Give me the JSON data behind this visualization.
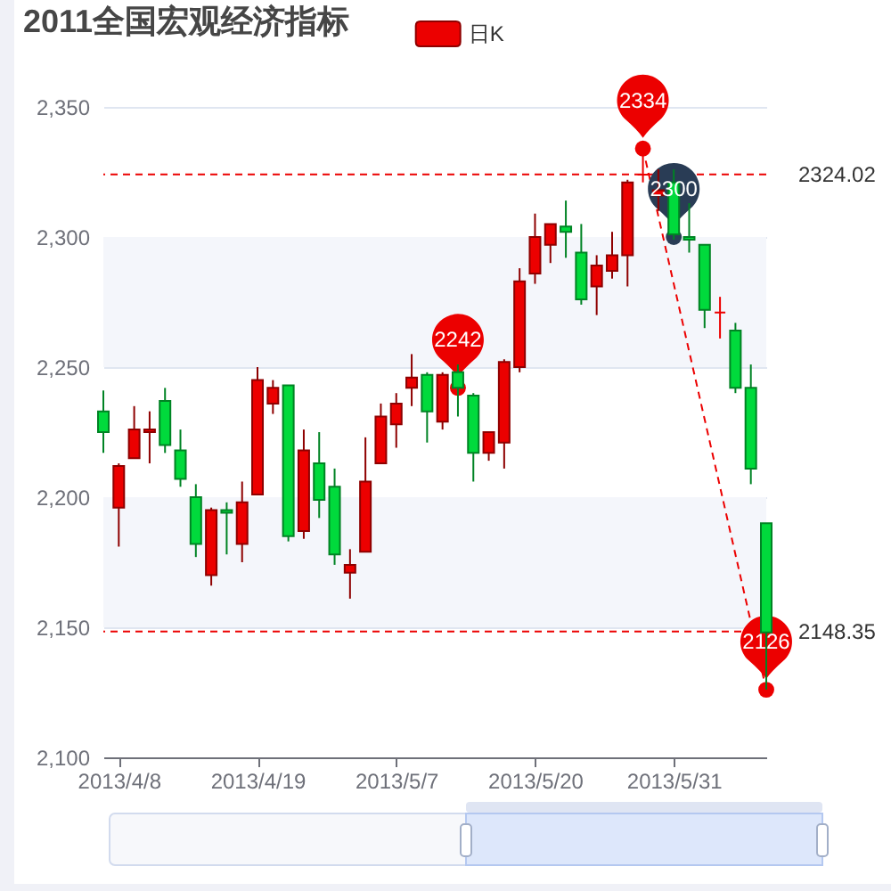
{
  "chart_data": {
    "type": "candlestick",
    "title": "2011全国宏观经济指标",
    "legend": "top",
    "grid": "y",
    "categories": [
      null,
      "2013/4/8",
      null,
      null,
      null,
      null,
      null,
      null,
      null,
      null,
      "2013/4/19",
      null,
      null,
      null,
      null,
      null,
      null,
      null,
      null,
      "2013/5/7",
      null,
      null,
      null,
      null,
      null,
      null,
      null,
      null,
      "2013/5/20",
      null,
      null,
      null,
      null,
      null,
      null,
      null,
      null,
      "2013/5/31",
      null,
      null,
      null,
      null,
      null,
      null
    ],
    "ylim": [
      2100,
      2350
    ],
    "yticks": [
      {
        "value": 2100,
        "label": "2,100"
      },
      {
        "value": 2150,
        "label": "2,150"
      },
      {
        "value": 2200,
        "label": "2,200"
      },
      {
        "value": 2250,
        "label": "2,250"
      },
      {
        "value": 2300,
        "label": "2,300"
      },
      {
        "value": 2350,
        "label": "2,350"
      }
    ],
    "bands": [
      {
        "axis": "y",
        "from": 2150,
        "to": 2200,
        "color": "#f4f6fb"
      },
      {
        "axis": "y",
        "from": 2250,
        "to": 2300,
        "color": "#f4f6fb"
      }
    ],
    "ref_lines": [
      {
        "axis": "y",
        "value": 2324.02,
        "label": "2324.02",
        "color": "#ec0000",
        "line_style": "dashed"
      },
      {
        "axis": "y",
        "value": 2148.35,
        "label": "2148.35",
        "color": "#ec0000",
        "line_style": "dashed"
      }
    ],
    "series": [
      {
        "type": "candlestick",
        "name": "日K",
        "color": "#ec0000",
        "colors": [
          "#00da3c",
          "#ec0000",
          "#ec0000",
          "#ec0000",
          "#00da3c",
          "#00da3c",
          "#00da3c",
          "#ec0000",
          "#00da3c",
          "#ec0000",
          "#ec0000",
          "#ec0000",
          "#00da3c",
          "#ec0000",
          "#00da3c",
          "#00da3c",
          "#ec0000",
          "#ec0000",
          "#ec0000",
          "#ec0000",
          "#ec0000",
          "#00da3c",
          "#ec0000",
          "#00da3c",
          "#00da3c",
          "#ec0000",
          "#ec0000",
          "#ec0000",
          "#ec0000",
          "#ec0000",
          "#00da3c",
          "#00da3c",
          "#ec0000",
          "#ec0000",
          "#ec0000",
          "#ec0000",
          "#ec0000",
          "#00da3c",
          "#00da3c",
          "#00da3c",
          "#ec0000",
          "#00da3c",
          "#00da3c",
          "#00da3c"
        ],
        "ohlc": [
          [
            2233,
            2241,
            2217,
            2225
          ],
          [
            2196,
            2213,
            2181,
            2212
          ],
          [
            2215,
            2235,
            2215,
            2226
          ],
          [
            2225,
            2233,
            2213,
            2226
          ],
          [
            2237,
            2242,
            2217,
            2220
          ],
          [
            2218,
            2226,
            2204,
            2207
          ],
          [
            2200,
            2205,
            2177,
            2182
          ],
          [
            2170,
            2196,
            2166,
            2195
          ],
          [
            2195,
            2198,
            2178,
            2194
          ],
          [
            2182,
            2206,
            2175,
            2198
          ],
          [
            2201,
            2250,
            2201,
            2245
          ],
          [
            2236,
            2245,
            2232,
            2242
          ],
          [
            2243,
            2243,
            2183,
            2185
          ],
          [
            2187,
            2226,
            2184,
            2218
          ],
          [
            2213,
            2225,
            2192,
            2199
          ],
          [
            2204,
            2211,
            2174,
            2178
          ],
          [
            2171,
            2180,
            2161,
            2174
          ],
          [
            2179,
            2223,
            2179,
            2206
          ],
          [
            2213,
            2236,
            2213,
            2231
          ],
          [
            2228,
            2240,
            2219,
            2236
          ],
          [
            2242,
            2255,
            2235,
            2246
          ],
          [
            2247,
            2248,
            2221,
            2233
          ],
          [
            2229,
            2248,
            2226,
            2247
          ],
          [
            2248,
            2251,
            2231,
            2242
          ],
          [
            2239,
            2240,
            2206,
            2217
          ],
          [
            2217,
            2225,
            2214,
            2225
          ],
          [
            2221,
            2253,
            2211,
            2252
          ],
          [
            2250,
            2288,
            2248,
            2283
          ],
          [
            2286,
            2309,
            2282,
            2300
          ],
          [
            2297,
            2305,
            2290,
            2305
          ],
          [
            2304,
            2314,
            2292,
            2302
          ],
          [
            2294,
            2305,
            2274,
            2276
          ],
          [
            2281,
            2293,
            2270,
            2289
          ],
          [
            2287,
            2302,
            2284,
            2293
          ],
          [
            2293,
            2322,
            2281,
            2321
          ],
          [
            2324,
            2334,
            2321,
            2324
          ],
          [
            2316,
            2326,
            2310,
            2318
          ],
          [
            2321,
            2326,
            2299,
            2301
          ],
          [
            2300,
            2313,
            2294,
            2299
          ],
          [
            2297,
            2297,
            2265,
            2272
          ],
          [
            2271,
            2277,
            2261,
            2271
          ],
          [
            2264,
            2267,
            2240,
            2242
          ],
          [
            2242,
            2251,
            2205,
            2211
          ],
          [
            2190,
            2190,
            2126,
            2148
          ]
        ]
      },
      {
        "type": "line",
        "color": "#ec0000",
        "line_style": "dashed",
        "values": [
          null,
          null,
          null,
          null,
          null,
          null,
          null,
          null,
          null,
          null,
          null,
          null,
          null,
          null,
          null,
          null,
          null,
          null,
          null,
          null,
          null,
          null,
          null,
          null,
          null,
          null,
          null,
          null,
          null,
          null,
          null,
          null,
          null,
          null,
          null,
          2334,
          null,
          null,
          null,
          null,
          null,
          null,
          null,
          2126
        ]
      },
      {
        "type": "scatter",
        "marker": "circle",
        "values": [
          null,
          null,
          null,
          null,
          null,
          null,
          null,
          null,
          null,
          null,
          null,
          null,
          null,
          null,
          null,
          null,
          null,
          null,
          null,
          null,
          null,
          null,
          null,
          2242,
          null,
          null,
          null,
          null,
          null,
          null,
          null,
          null,
          null,
          null,
          null,
          2334,
          null,
          2300,
          null,
          null,
          null,
          null,
          null,
          2126
        ],
        "colors": [
          null,
          null,
          null,
          null,
          null,
          null,
          null,
          null,
          null,
          null,
          null,
          null,
          null,
          null,
          null,
          null,
          null,
          null,
          null,
          null,
          null,
          null,
          null,
          "#ec0000",
          null,
          null,
          null,
          null,
          null,
          null,
          null,
          null,
          null,
          null,
          null,
          "#ec0000",
          null,
          "#293c55",
          null,
          null,
          null,
          null,
          null,
          "#ec0000"
        ],
        "value_labels": [
          null,
          null,
          null,
          null,
          null,
          null,
          null,
          null,
          null,
          null,
          null,
          null,
          null,
          null,
          null,
          null,
          null,
          null,
          null,
          null,
          null,
          null,
          null,
          "2242",
          null,
          null,
          null,
          null,
          null,
          null,
          null,
          null,
          null,
          null,
          null,
          "2334",
          null,
          "2300",
          null,
          null,
          null,
          null,
          null,
          "2126"
        ]
      }
    ]
  }
}
